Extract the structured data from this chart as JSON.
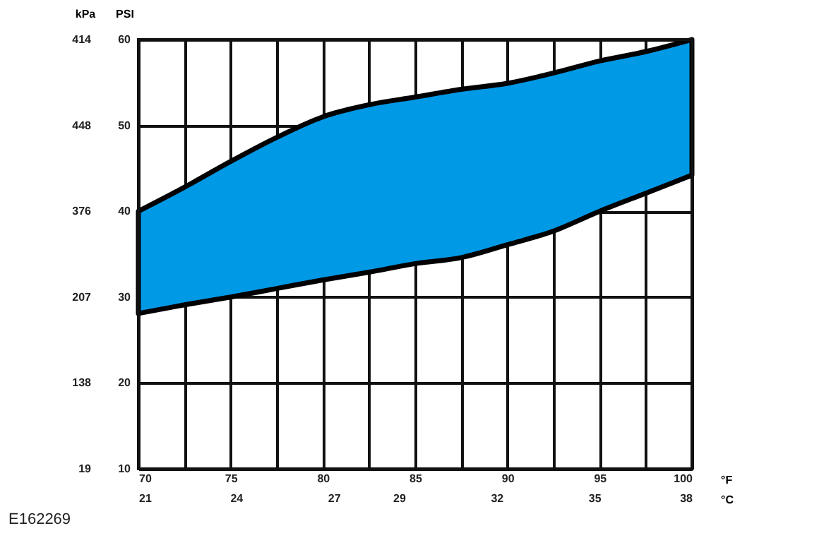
{
  "chart_data": {
    "type": "area",
    "ylabel": "PSI",
    "y2label": "kPa",
    "xlabel": "°F",
    "x2label": "°C",
    "annotations": [
      "E162269"
    ],
    "x": [
      70,
      72.5,
      75,
      77.5,
      80,
      82.5,
      85,
      87.5,
      90,
      92.5,
      95,
      97.5,
      100
    ],
    "series": [
      {
        "color": "#0099e6",
        "values": [
          null,
          null,
          null,
          null,
          null,
          null,
          null,
          null,
          null,
          null,
          null,
          null,
          null
        ],
        "lower": [
          28.1,
          29.1,
          30,
          31,
          32,
          32.9,
          33.9,
          34.6,
          36.1,
          37.7,
          40,
          42.1,
          44.2
        ],
        "upper": [
          40,
          42.8,
          45.8,
          48.6,
          51,
          52.4,
          53.3,
          54.2,
          54.9,
          56.1,
          57.5,
          58.6,
          60
        ]
      }
    ],
    "xlim": [
      70,
      100
    ],
    "xticks": [
      70,
      {
        "value": 72.5,
        "label": null
      },
      75,
      {
        "value": 77.5,
        "label": null
      },
      80,
      {
        "value": 82.5,
        "label": null
      },
      85,
      {
        "value": 87.5,
        "label": null
      },
      90,
      {
        "value": 92.5,
        "label": null
      },
      95,
      {
        "value": 97.5,
        "label": null
      },
      100
    ],
    "x2lim": [
      21,
      38
    ],
    "x2ticks": [
      21,
      24,
      27,
      29,
      32,
      35,
      38
    ],
    "ylim": [
      10,
      60
    ],
    "yticks": [
      10,
      20,
      30,
      40,
      50,
      60
    ],
    "y2_categories": [
      "414",
      "448",
      "376",
      "207",
      "138",
      "19"
    ],
    "grid": true,
    "line_style": "solid"
  }
}
